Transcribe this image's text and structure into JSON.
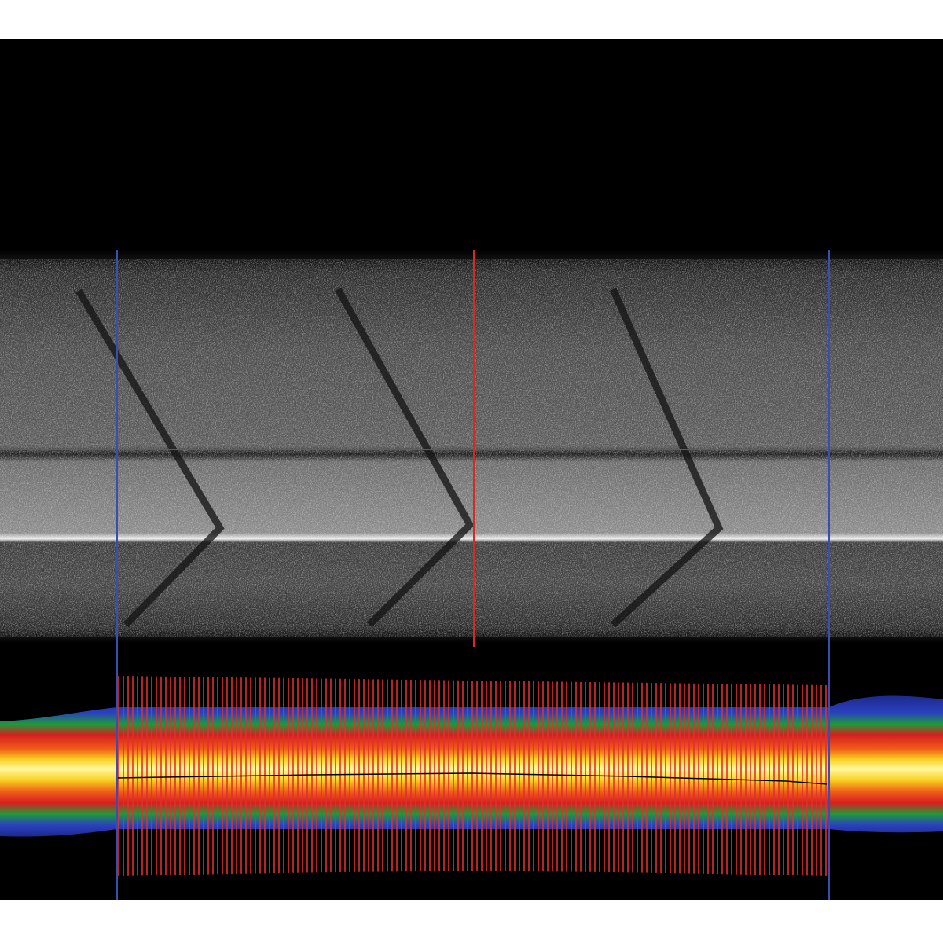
{
  "image": {
    "background_color": "#000000",
    "frame_color": "#ffffff",
    "crosshair_color": "#d42a2a",
    "boundary_line_color": "#3a4db0",
    "profile_line_color": "#e03030",
    "centerline_color": "#000000",
    "heatmap_colors": [
      "#1c2a8c",
      "#2a40c0",
      "#1e9a3a",
      "#d81e1e",
      "#f06018",
      "#f8d020",
      "#fff8a0"
    ]
  }
}
